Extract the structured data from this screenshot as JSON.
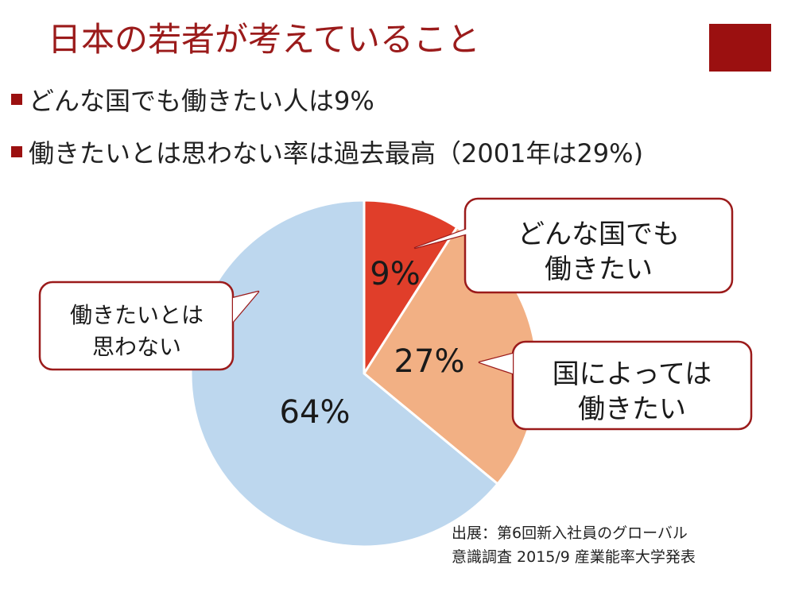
{
  "title": "日本の若者が考えていること",
  "bullets": [
    "どんな国でも働きたい人は9%",
    "働きたいとは思わない率は過去最高（2001年は29%)"
  ],
  "source": {
    "line1": "出展：第6回新入社員のグローバル",
    "line2": "意識調査 2015/9 産業能率大学発表"
  },
  "colors": {
    "accent": "#9b1010",
    "slice_any": "#e03e2a",
    "slice_depends": "#f2b084",
    "slice_no": "#bdd7ee",
    "callout_border": "#9b1b1b"
  },
  "chart_data": {
    "type": "pie",
    "slices": [
      {
        "label": "9%",
        "value": 9,
        "callout": [
          "どんな国でも",
          "働きたい"
        ]
      },
      {
        "label": "27%",
        "value": 27,
        "callout": [
          "国によっては",
          "働きたい"
        ]
      },
      {
        "label": "64%",
        "value": 64,
        "callout": [
          "働きたいとは",
          "思わない"
        ]
      }
    ]
  }
}
